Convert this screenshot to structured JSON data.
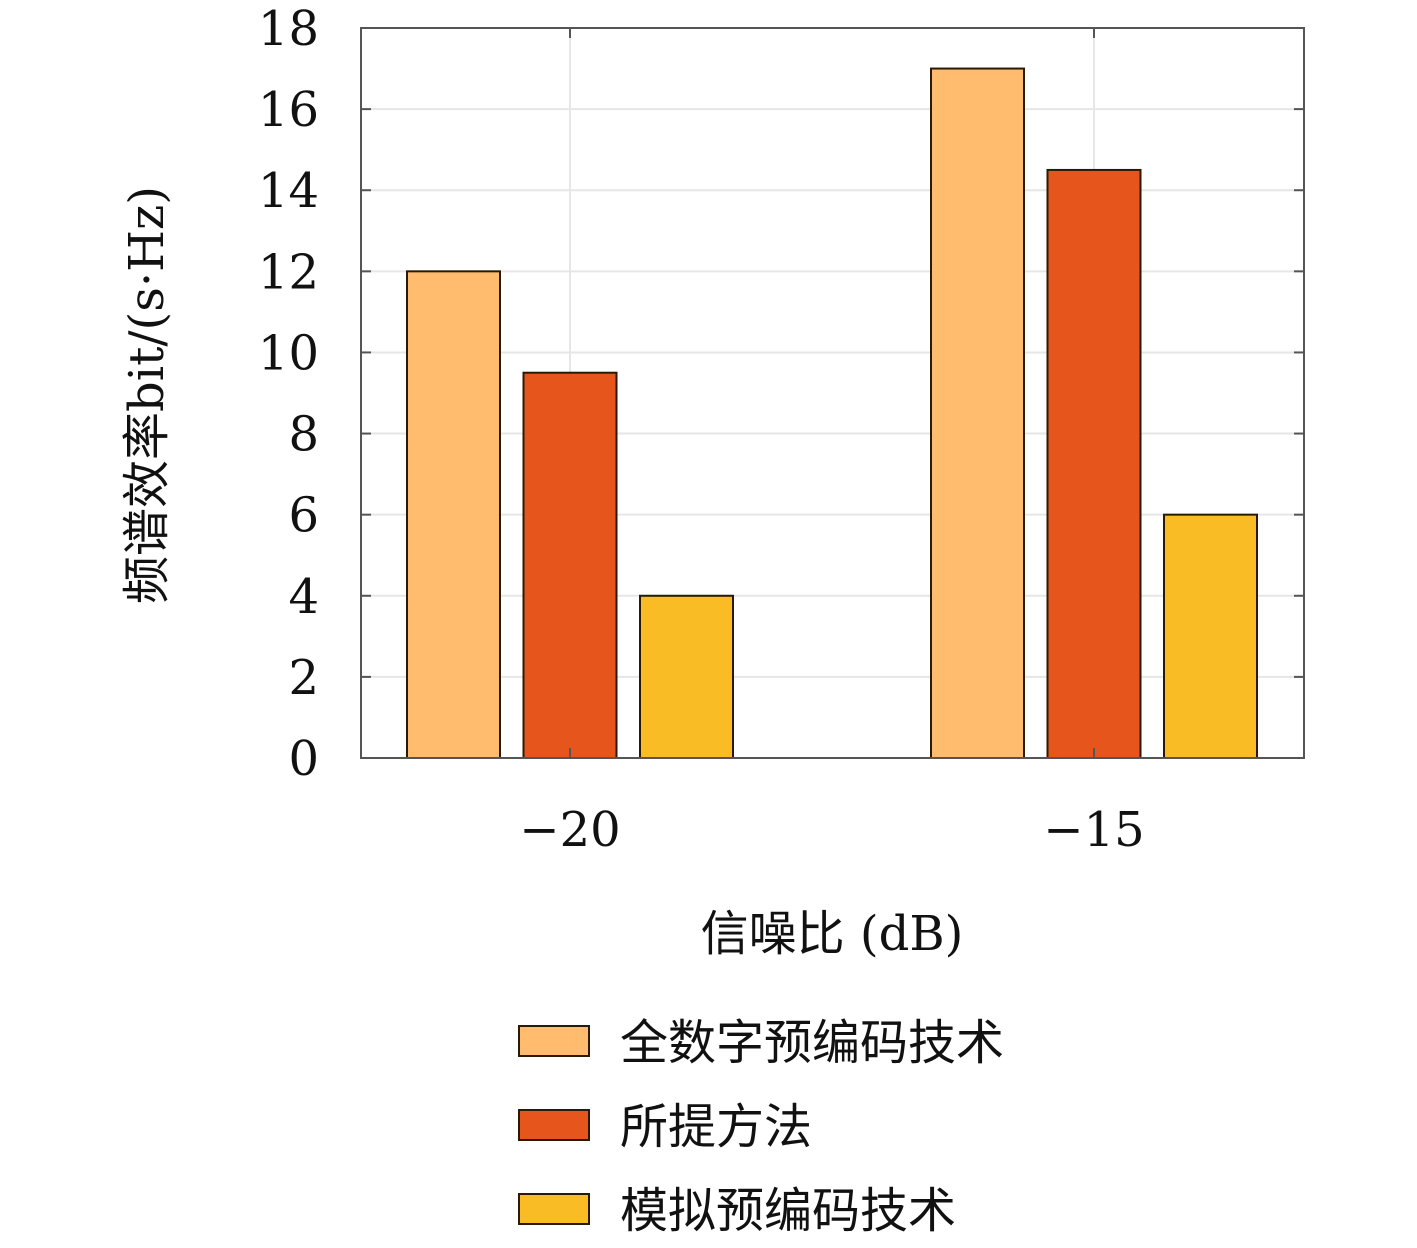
{
  "chart_data": {
    "type": "bar",
    "categories": [
      "−20",
      "−15"
    ],
    "series": [
      {
        "name": "全数字预编码技术",
        "values": [
          12,
          17
        ],
        "color": "#FFBC6E"
      },
      {
        "name": "所提方法",
        "values": [
          9.5,
          14.5
        ],
        "color": "#E6561C"
      },
      {
        "name": "模拟预编码技术",
        "values": [
          4,
          6
        ],
        "color": "#F9BC25"
      }
    ],
    "xlabel": "信噪比 (dB)",
    "ylabel": "频谱效率bit/(s·Hz)",
    "ylim": [
      0,
      18
    ],
    "yticks": [
      "0",
      "2",
      "4",
      "6",
      "8",
      "10",
      "12",
      "14",
      "16",
      "18"
    ],
    "grid": true,
    "legend_position": "bottom-center"
  }
}
